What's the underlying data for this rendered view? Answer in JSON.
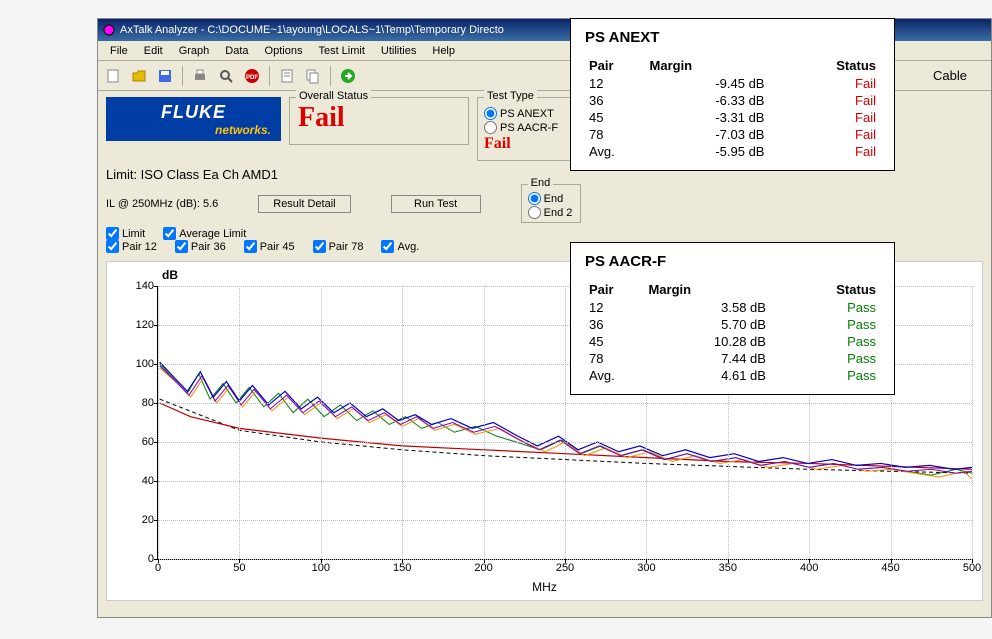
{
  "window": {
    "title": "AxTalk Analyzer - C:\\DOCUME~1\\ayoung\\LOCALS~1\\Temp\\Temporary Directo"
  },
  "menu": [
    "File",
    "Edit",
    "Graph",
    "Data",
    "Options",
    "Test Limit",
    "Utilities",
    "Help"
  ],
  "toolbar_right_label": "Cable",
  "logo": {
    "top": "FLUKE",
    "bottom": "networks."
  },
  "overall_status": {
    "label": "Overall Status",
    "value": "Fail",
    "color": "#e00000"
  },
  "test_type": {
    "label": "Test Type",
    "options": [
      {
        "id": "anext",
        "label": "PS ANEXT",
        "checked": true
      },
      {
        "id": "aacrf",
        "label": "PS AACR-F",
        "checked": false
      }
    ],
    "status": "Fail",
    "status_color": "#e00000"
  },
  "end_group": {
    "label": "End",
    "options": [
      {
        "label": "End",
        "checked": true
      },
      {
        "label": "End 2",
        "checked": false
      }
    ]
  },
  "limit_text": "Limit: ISO Class Ea Ch AMD1",
  "il_text": "IL @ 250MHz (dB):  5.6",
  "buttons": {
    "result_detail": "Result Detail",
    "run_test": "Run Test"
  },
  "checks_row1": [
    {
      "label": "Limit",
      "checked": true
    },
    {
      "label": "Average Limit",
      "checked": true
    }
  ],
  "checks_row2": [
    {
      "label": "Pair 12",
      "checked": true
    },
    {
      "label": "Pair 36",
      "checked": true
    },
    {
      "label": "Pair 45",
      "checked": true
    },
    {
      "label": "Pair 78",
      "checked": true
    },
    {
      "label": "Avg.",
      "checked": true
    }
  ],
  "chart": {
    "ylabel": "dB",
    "title": "PS ANEXT",
    "xlabel": "MHz",
    "ylim": [
      0,
      140
    ],
    "ytick_step": 20,
    "xlim": [
      0,
      500
    ],
    "xtick_step": 50,
    "background_color": "#ffffff",
    "grid_color": "#bbbbbb",
    "series": [
      {
        "name": "limit",
        "color": "#000000",
        "dash": "4,3",
        "width": 1,
        "points": [
          [
            1,
            82
          ],
          [
            50,
            66
          ],
          [
            100,
            60
          ],
          [
            150,
            56
          ],
          [
            200,
            53
          ],
          [
            250,
            51
          ],
          [
            300,
            49
          ],
          [
            350,
            47.5
          ],
          [
            400,
            46
          ],
          [
            450,
            45
          ],
          [
            500,
            44
          ]
        ]
      },
      {
        "name": "avg-limit",
        "color": "#c00000",
        "width": 1.2,
        "points": [
          [
            1,
            80
          ],
          [
            20,
            73
          ],
          [
            50,
            67
          ],
          [
            100,
            62
          ],
          [
            150,
            58
          ],
          [
            200,
            56
          ],
          [
            250,
            54
          ],
          [
            300,
            52
          ],
          [
            350,
            50
          ],
          [
            400,
            49
          ],
          [
            450,
            47.5
          ],
          [
            500,
            46
          ]
        ]
      },
      {
        "name": "pair45",
        "color": "#008000",
        "width": 1,
        "points": [
          [
            1,
            100
          ],
          [
            10,
            92
          ],
          [
            18,
            85
          ],
          [
            25,
            95
          ],
          [
            32,
            82
          ],
          [
            40,
            90
          ],
          [
            48,
            80
          ],
          [
            56,
            88
          ],
          [
            65,
            78
          ],
          [
            74,
            85
          ],
          [
            83,
            75
          ],
          [
            92,
            82
          ],
          [
            102,
            73
          ],
          [
            112,
            79
          ],
          [
            122,
            71
          ],
          [
            132,
            76
          ],
          [
            142,
            69
          ],
          [
            152,
            73
          ],
          [
            162,
            67
          ],
          [
            172,
            70
          ],
          [
            182,
            65
          ],
          [
            195,
            68
          ],
          [
            208,
            63
          ],
          [
            220,
            60
          ],
          [
            235,
            56
          ],
          [
            248,
            61
          ],
          [
            260,
            54
          ],
          [
            272,
            58
          ],
          [
            285,
            53
          ],
          [
            298,
            56
          ],
          [
            312,
            51
          ],
          [
            325,
            54
          ],
          [
            340,
            50
          ],
          [
            355,
            52
          ],
          [
            370,
            48
          ],
          [
            385,
            50
          ],
          [
            400,
            47
          ],
          [
            415,
            49
          ],
          [
            430,
            46
          ],
          [
            445,
            47
          ],
          [
            460,
            45
          ],
          [
            475,
            43
          ],
          [
            490,
            46
          ],
          [
            500,
            44
          ]
        ]
      },
      {
        "name": "pair36",
        "color": "#ff8c00",
        "width": 1,
        "points": [
          [
            1,
            98
          ],
          [
            12,
            90
          ],
          [
            20,
            83
          ],
          [
            28,
            93
          ],
          [
            36,
            80
          ],
          [
            44,
            88
          ],
          [
            52,
            78
          ],
          [
            60,
            86
          ],
          [
            70,
            76
          ],
          [
            80,
            83
          ],
          [
            90,
            74
          ],
          [
            100,
            80
          ],
          [
            110,
            72
          ],
          [
            120,
            77
          ],
          [
            130,
            70
          ],
          [
            140,
            74
          ],
          [
            150,
            68
          ],
          [
            160,
            72
          ],
          [
            170,
            66
          ],
          [
            182,
            69
          ],
          [
            195,
            64
          ],
          [
            210,
            67
          ],
          [
            225,
            60
          ],
          [
            238,
            55
          ],
          [
            250,
            60
          ],
          [
            262,
            53
          ],
          [
            275,
            57
          ],
          [
            288,
            52
          ],
          [
            302,
            55
          ],
          [
            316,
            50
          ],
          [
            330,
            53
          ],
          [
            345,
            49
          ],
          [
            360,
            51
          ],
          [
            375,
            47
          ],
          [
            390,
            49
          ],
          [
            405,
            46
          ],
          [
            420,
            48
          ],
          [
            435,
            45
          ],
          [
            450,
            46
          ],
          [
            465,
            44
          ],
          [
            480,
            42
          ],
          [
            495,
            45
          ],
          [
            500,
            41
          ]
        ]
      },
      {
        "name": "pair78",
        "color": "#8000c0",
        "width": 1,
        "points": [
          [
            1,
            99
          ],
          [
            11,
            91
          ],
          [
            19,
            84
          ],
          [
            27,
            94
          ],
          [
            35,
            81
          ],
          [
            43,
            89
          ],
          [
            51,
            79
          ],
          [
            59,
            87
          ],
          [
            69,
            77
          ],
          [
            79,
            84
          ],
          [
            89,
            75
          ],
          [
            99,
            81
          ],
          [
            109,
            73
          ],
          [
            119,
            78
          ],
          [
            129,
            71
          ],
          [
            139,
            75
          ],
          [
            149,
            69
          ],
          [
            159,
            73
          ],
          [
            169,
            67
          ],
          [
            181,
            70
          ],
          [
            194,
            65
          ],
          [
            207,
            68
          ],
          [
            222,
            61
          ],
          [
            234,
            56
          ],
          [
            247,
            61
          ],
          [
            259,
            54
          ],
          [
            271,
            58
          ],
          [
            284,
            53
          ],
          [
            297,
            56
          ],
          [
            311,
            51
          ],
          [
            325,
            54
          ],
          [
            340,
            50
          ],
          [
            355,
            52
          ],
          [
            370,
            48
          ],
          [
            385,
            50
          ],
          [
            400,
            47
          ],
          [
            415,
            49
          ],
          [
            430,
            46
          ],
          [
            445,
            47
          ],
          [
            460,
            45
          ],
          [
            475,
            46
          ],
          [
            490,
            44
          ],
          [
            500,
            45
          ]
        ]
      },
      {
        "name": "pair12",
        "color": "#0000d0",
        "width": 1.2,
        "points": [
          [
            1,
            101
          ],
          [
            10,
            93
          ],
          [
            18,
            86
          ],
          [
            26,
            96
          ],
          [
            34,
            83
          ],
          [
            42,
            91
          ],
          [
            50,
            81
          ],
          [
            58,
            89
          ],
          [
            68,
            79
          ],
          [
            78,
            86
          ],
          [
            88,
            77
          ],
          [
            98,
            83
          ],
          [
            108,
            75
          ],
          [
            118,
            80
          ],
          [
            128,
            73
          ],
          [
            138,
            77
          ],
          [
            148,
            71
          ],
          [
            158,
            74
          ],
          [
            168,
            69
          ],
          [
            180,
            72
          ],
          [
            193,
            67
          ],
          [
            206,
            70
          ],
          [
            221,
            63
          ],
          [
            233,
            58
          ],
          [
            246,
            63
          ],
          [
            258,
            56
          ],
          [
            270,
            60
          ],
          [
            283,
            55
          ],
          [
            296,
            58
          ],
          [
            310,
            53
          ],
          [
            324,
            56
          ],
          [
            339,
            52
          ],
          [
            354,
            54
          ],
          [
            369,
            50
          ],
          [
            384,
            52
          ],
          [
            399,
            49
          ],
          [
            414,
            51
          ],
          [
            429,
            48
          ],
          [
            444,
            49
          ],
          [
            459,
            47
          ],
          [
            474,
            48
          ],
          [
            489,
            46
          ],
          [
            500,
            47
          ]
        ]
      }
    ]
  },
  "overlay_anext": {
    "title": "PS ANEXT",
    "headers": [
      "Pair",
      "Margin",
      "Status"
    ],
    "rows": [
      {
        "pair": "12",
        "margin": "-9.45 dB",
        "status": "Fail",
        "status_class": "fail"
      },
      {
        "pair": "36",
        "margin": "-6.33 dB",
        "status": "Fail",
        "status_class": "fail"
      },
      {
        "pair": "45",
        "margin": "-3.31 dB",
        "status": "Fail",
        "status_class": "fail"
      },
      {
        "pair": "78",
        "margin": "-7.03 dB",
        "status": "Fail",
        "status_class": "fail"
      },
      {
        "pair": "Avg.",
        "margin": "-5.95 dB",
        "status": "Fail",
        "status_class": "fail"
      }
    ]
  },
  "overlay_aacrf": {
    "title": "PS AACR-F",
    "headers": [
      "Pair",
      "Margin",
      "Status"
    ],
    "rows": [
      {
        "pair": "12",
        "margin": "3.58 dB",
        "status": "Pass",
        "status_class": "pass"
      },
      {
        "pair": "36",
        "margin": "5.70 dB",
        "status": "Pass",
        "status_class": "pass"
      },
      {
        "pair": "45",
        "margin": "10.28 dB",
        "status": "Pass",
        "status_class": "pass"
      },
      {
        "pair": "78",
        "margin": "7.44 dB",
        "status": "Pass",
        "status_class": "pass"
      },
      {
        "pair": "Avg.",
        "margin": "4.61 dB",
        "status": "Pass",
        "status_class": "pass"
      }
    ]
  },
  "icons": {
    "new": "#f5deb3",
    "open": "#e6b800",
    "save": "#4169e1",
    "print": "#666",
    "preview": "#888",
    "pdf": "#c00",
    "sheet": "#eee",
    "copy": "#ddd",
    "go": "#2a2"
  }
}
